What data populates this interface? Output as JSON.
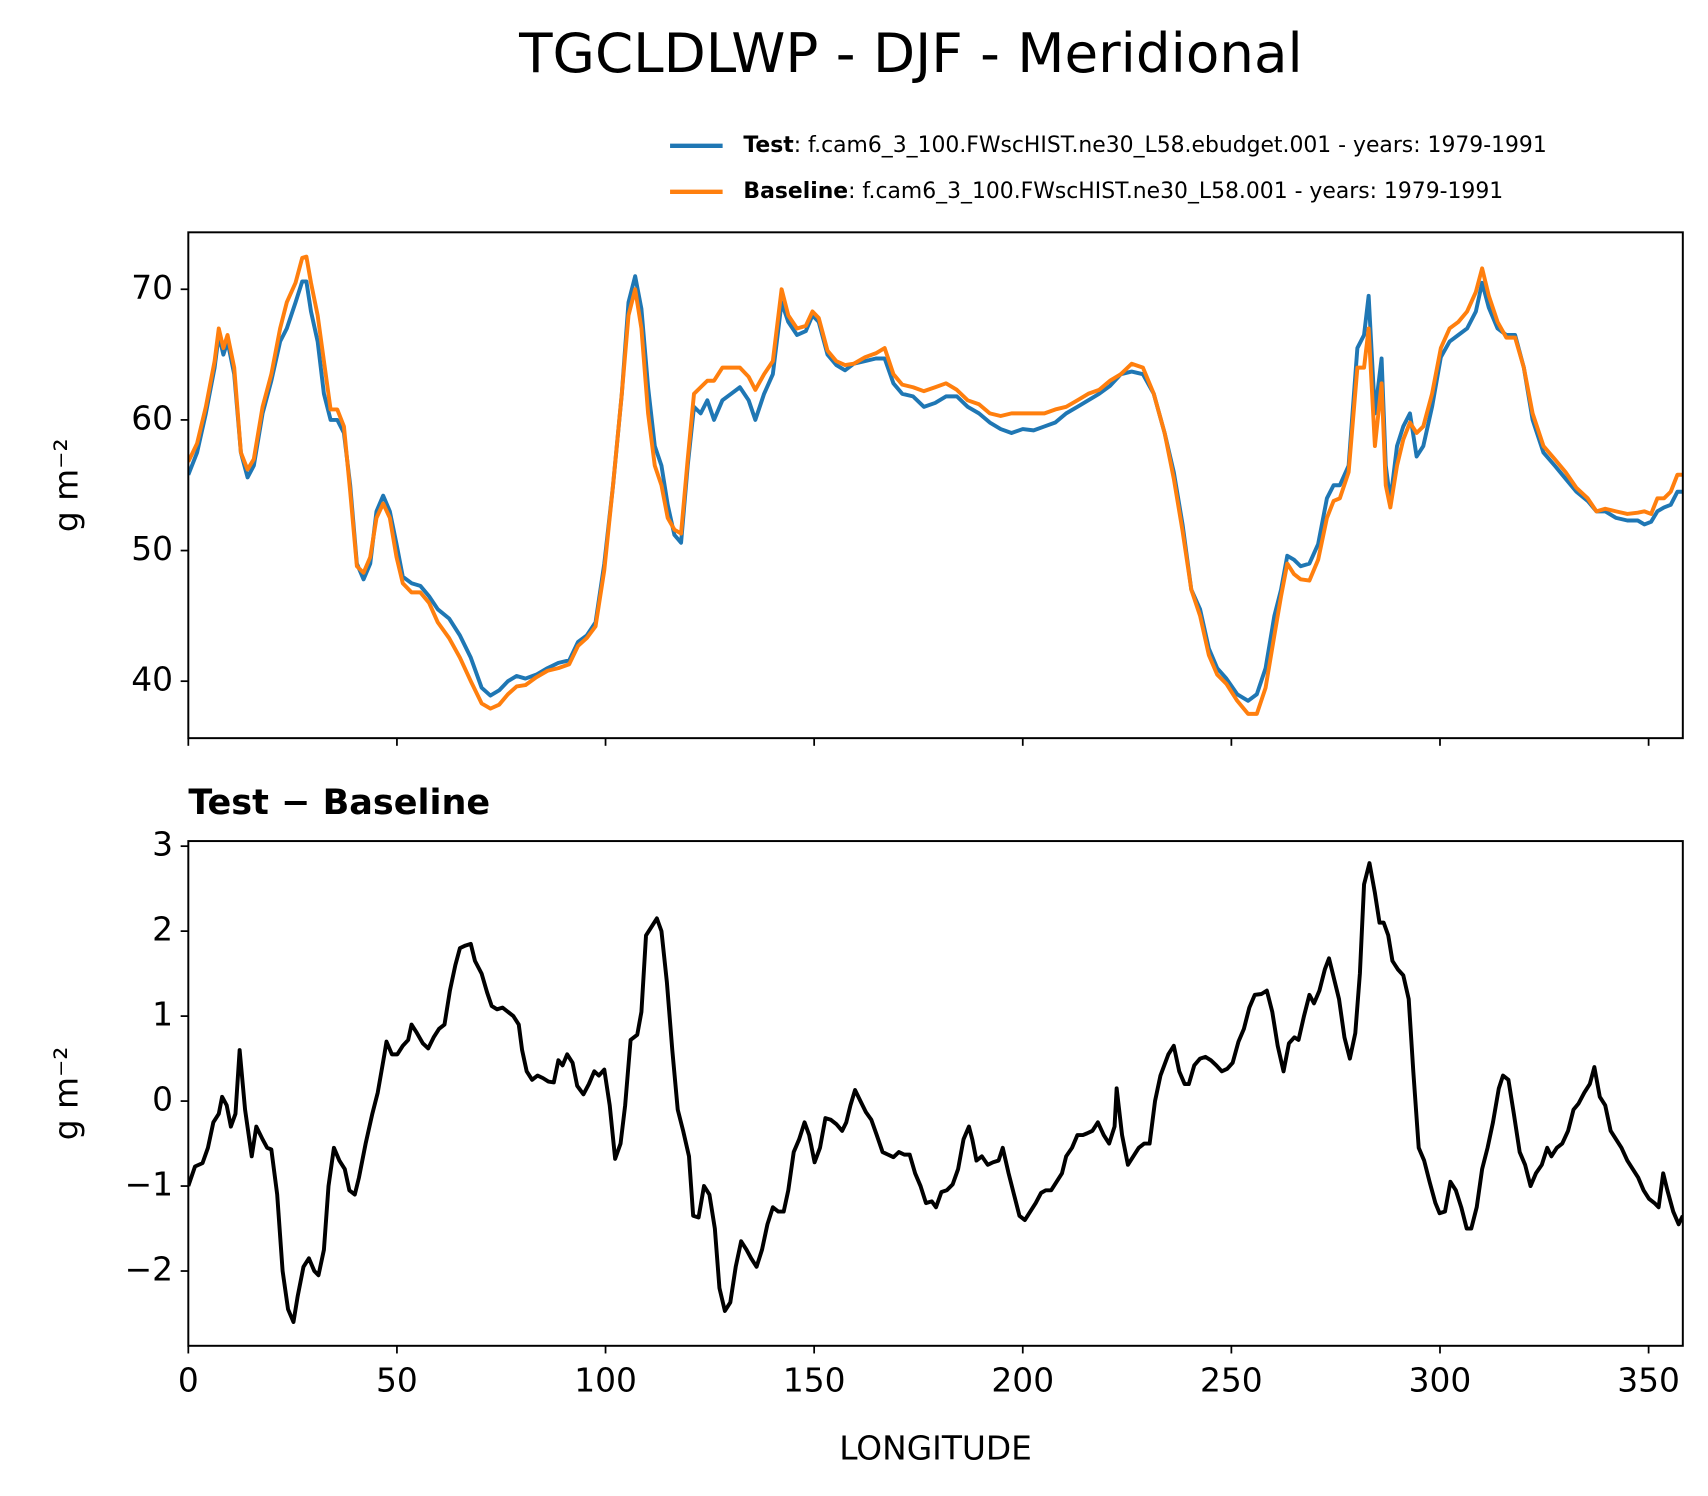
{
  "chart_data": [
    {
      "type": "line",
      "title": "TGCLDLWP - DJF - Meridional",
      "ylabel": "g m⁻²",
      "legend": "upper right",
      "xlim": [
        0,
        358.2
      ],
      "xticks": [
        0,
        50,
        100,
        150,
        200,
        250,
        300,
        350
      ],
      "ylim": [
        35.64,
        74.36
      ],
      "yticks": [
        40,
        50,
        60,
        70
      ],
      "x": [
        0,
        2.1,
        4.2,
        6.3,
        7.3,
        8.4,
        9.4,
        11,
        12.6,
        14.2,
        15.7,
        17.8,
        19.9,
        22,
        23.6,
        25.7,
        27.3,
        28.3,
        29.4,
        31,
        32.5,
        34.1,
        35.7,
        37.3,
        38.8,
        40.4,
        42,
        43.6,
        45.1,
        46.7,
        48.3,
        49.9,
        51.4,
        53.5,
        55.6,
        57.7,
        59.8,
        62.5,
        65.1,
        67.7,
        70.3,
        72.4,
        74.5,
        76.6,
        78.7,
        80.8,
        83.4,
        86.1,
        88.7,
        91.3,
        93.4,
        95.5,
        97.6,
        99.7,
        101.8,
        103.9,
        105.5,
        107.1,
        108.6,
        110.2,
        111.8,
        113.4,
        114.9,
        116.5,
        118.1,
        119.7,
        121.2,
        122.8,
        124.4,
        126,
        128,
        130.1,
        132.2,
        134.3,
        135.9,
        138,
        140.1,
        142.2,
        143.8,
        145.9,
        148,
        149.6,
        151.1,
        153.2,
        155.3,
        157.4,
        159.5,
        162.2,
        164.8,
        166.9,
        169,
        171.1,
        173.7,
        176.3,
        179,
        181.6,
        184.2,
        186.8,
        189.5,
        192.1,
        194.7,
        197.3,
        200,
        202.6,
        205.2,
        207.8,
        210.4,
        213.1,
        215.7,
        218.3,
        220.9,
        223.5,
        226.1,
        228.8,
        231.4,
        234,
        236.2,
        238.3,
        240.4,
        242.5,
        244.6,
        246.6,
        248.8,
        251.4,
        254,
        256.1,
        258.2,
        260.3,
        261.9,
        263.4,
        265,
        266.6,
        268.7,
        270.8,
        272.9,
        274.5,
        276,
        278.1,
        280.2,
        281.8,
        282.9,
        284.4,
        286,
        287,
        288.1,
        289.7,
        291.2,
        292.8,
        294.4,
        296,
        298.1,
        300.2,
        302.3,
        304.4,
        306.5,
        308.6,
        310.1,
        311.7,
        313.8,
        315.9,
        318,
        320.1,
        322.2,
        324.8,
        327.5,
        330.1,
        332.7,
        335.4,
        337.5,
        339.6,
        342.2,
        344.9,
        347.4,
        349,
        350.6,
        352.1,
        353.7,
        355.3,
        356.9,
        358.2
      ],
      "series": [
        {
          "name": "Test",
          "label": ": f.cam6_3_100.FWscHIST.ne30_L58.ebudget.001 - years: 1979-1991",
          "color": "#1f77b4",
          "values": [
            55.8,
            57.5,
            60.5,
            64,
            66.5,
            65,
            66,
            63.5,
            57.5,
            55.6,
            56.5,
            60.5,
            63,
            66,
            67,
            69,
            70.6,
            70.6,
            68.3,
            66,
            62,
            60,
            60,
            59,
            55,
            49,
            47.8,
            49,
            53,
            54.2,
            53,
            50.5,
            48,
            47.5,
            47.3,
            46.5,
            45.5,
            44.8,
            43.5,
            41.8,
            39.5,
            38.9,
            39.3,
            40,
            40.4,
            40.2,
            40.5,
            41,
            41.4,
            41.6,
            43,
            43.5,
            44.5,
            49,
            55,
            62,
            69,
            71,
            68.5,
            62.5,
            58,
            56.5,
            53.5,
            51.2,
            50.6,
            56.5,
            61,
            60.5,
            61.5,
            60,
            61.5,
            62,
            62.5,
            61.5,
            60,
            62,
            63.5,
            69,
            67.5,
            66.5,
            66.8,
            68,
            67.5,
            65,
            64.2,
            63.8,
            64.3,
            64.5,
            64.7,
            64.7,
            62.8,
            62,
            61.8,
            61,
            61.3,
            61.8,
            61.8,
            61,
            60.5,
            59.8,
            59.3,
            59,
            59.3,
            59.2,
            59.5,
            59.8,
            60.5,
            61,
            61.5,
            62,
            62.6,
            63.5,
            63.7,
            63.5,
            62,
            59,
            56,
            52,
            47,
            45.5,
            42.5,
            41,
            40.2,
            39,
            38.5,
            39,
            41,
            45,
            47,
            49.6,
            49.3,
            48.8,
            49,
            50.5,
            54,
            55,
            55,
            56.5,
            65.5,
            66.5,
            69.5,
            60.5,
            64.7,
            56.5,
            53.8,
            58,
            59.5,
            60.5,
            57.2,
            58,
            61,
            64.8,
            66,
            66.5,
            67,
            68.3,
            70.5,
            68.6,
            67,
            66.5,
            66.5,
            64,
            60,
            57.5,
            56.5,
            55.5,
            54.5,
            53.8,
            53,
            53,
            52.5,
            52.3,
            52.3,
            52,
            52.2,
            53,
            53.3,
            53.5,
            54.5,
            54.5
          ]
        },
        {
          "name": "Baseline",
          "label": ": f.cam6_3_100.FWscHIST.ne30_L58.001 - years: 1979-1991",
          "color": "#ff7f0e",
          "values": [
            56.8,
            58.2,
            61,
            64.5,
            67,
            65.5,
            66.5,
            64,
            57.5,
            56.2,
            57,
            61,
            63.5,
            67,
            69,
            70.5,
            72.4,
            72.5,
            70.5,
            68,
            64.5,
            60.8,
            60.8,
            59.5,
            54.5,
            48.8,
            48.3,
            49.5,
            52.5,
            53.6,
            52.5,
            49.5,
            47.5,
            46.8,
            46.8,
            46,
            44.5,
            43.3,
            41.8,
            40,
            38.3,
            37.9,
            38.2,
            39,
            39.6,
            39.7,
            40.3,
            40.8,
            41,
            41.3,
            42.7,
            43.3,
            44.2,
            48.5,
            55,
            62,
            68,
            70,
            67,
            60.5,
            56.5,
            55,
            52.5,
            51.6,
            51.3,
            57,
            62,
            62.5,
            63,
            63,
            64,
            64,
            64,
            63.3,
            62.3,
            63.5,
            64.5,
            70,
            68,
            67,
            67.2,
            68.3,
            67.8,
            65.3,
            64.5,
            64.2,
            64.3,
            64.8,
            65.1,
            65.5,
            63.5,
            62.7,
            62.5,
            62.2,
            62.5,
            62.8,
            62.3,
            61.5,
            61.2,
            60.5,
            60.3,
            60.5,
            60.5,
            60.5,
            60.5,
            60.8,
            61,
            61.5,
            62,
            62.3,
            63,
            63.5,
            64.3,
            64,
            62,
            59,
            55.5,
            51.5,
            47,
            45,
            42,
            40.5,
            39.8,
            38.5,
            37.5,
            37.5,
            39.5,
            43.5,
            46.5,
            49,
            48.2,
            47.8,
            47.7,
            49.3,
            52.5,
            53.8,
            54,
            56,
            64,
            64,
            67,
            58,
            62.8,
            55,
            53.3,
            56.5,
            58.5,
            59.8,
            59,
            59.5,
            62,
            65.5,
            67,
            67.5,
            68.3,
            69.8,
            71.6,
            69.5,
            67.5,
            66.3,
            66.3,
            64,
            60.5,
            58,
            57,
            56,
            54.8,
            54,
            53,
            53.2,
            53,
            52.8,
            52.9,
            53,
            52.8,
            54,
            54,
            54.5,
            55.8,
            55.8
          ]
        }
      ]
    },
    {
      "type": "line",
      "title": "Test − Baseline",
      "ylabel": "g m⁻²",
      "xlabel": "LONGITUDE",
      "xlim": [
        0,
        358.2
      ],
      "xticks": [
        0,
        50,
        100,
        150,
        200,
        250,
        300,
        350
      ],
      "ylim": [
        -2.88,
        3.06
      ],
      "yticks": [
        {
          "value": -2,
          "label": "−2"
        },
        {
          "value": -1,
          "label": "−1"
        },
        0,
        1,
        2,
        3
      ],
      "x": [
        0,
        1.6,
        3.4,
        4.7,
        6,
        7.3,
        8.1,
        9.2,
        10.2,
        11.3,
        12.3,
        13.6,
        15.2,
        16.3,
        17.8,
        18.9,
        19.9,
        21.3,
        22.6,
        23.9,
        25.2,
        26.2,
        27.6,
        28.9,
        30.2,
        31.2,
        32.5,
        33.6,
        34.9,
        36.2,
        37.5,
        38.6,
        39.9,
        40.9,
        42.5,
        44.1,
        45.4,
        47,
        47.5,
        48.8,
        50.1,
        51.4,
        52.7,
        53.5,
        54.8,
        56.2,
        57.5,
        58.8,
        60.1,
        61.4,
        62.7,
        64,
        65.1,
        66.4,
        67.7,
        68.7,
        70.3,
        71.6,
        72.7,
        74,
        75.3,
        76.6,
        77.9,
        79.2,
        80,
        81.1,
        82.4,
        83.7,
        85,
        86.3,
        87.6,
        88.7,
        89.7,
        90.8,
        92.1,
        93.2,
        94.7,
        96,
        97.3,
        98.4,
        99.7,
        101,
        102.3,
        103.6,
        104.7,
        106,
        107.6,
        108.6,
        109.7,
        111,
        112.3,
        113.4,
        114.7,
        116,
        117.3,
        118.6,
        120,
        121,
        122.3,
        123.6,
        124.9,
        126.2,
        127.3,
        128.6,
        129.9,
        131.2,
        132.5,
        133.8,
        134.9,
        136.2,
        137.5,
        138.8,
        140.1,
        141.4,
        142.7,
        143.8,
        145.1,
        146.4,
        147.7,
        148.8,
        150.1,
        151.4,
        152.7,
        154,
        155.3,
        156.7,
        157.7,
        158.7,
        159.8,
        161.1,
        162.4,
        163.7,
        165,
        166.4,
        167.7,
        169,
        170.3,
        171.6,
        172.9,
        174.2,
        175.5,
        176.8,
        178.2,
        179.2,
        180.5,
        181.8,
        183.2,
        184.5,
        185.8,
        187.1,
        187.9,
        188.9,
        190.2,
        191.6,
        192.9,
        194.2,
        195.2,
        196.6,
        197.9,
        199.2,
        200.5,
        201.8,
        203.1,
        204.4,
        205.5,
        206.8,
        208.1,
        209.4,
        210.4,
        211.8,
        213.1,
        214.4,
        215.4,
        216.7,
        218,
        219.4,
        220.7,
        222,
        222.5,
        223.8,
        225.2,
        226.5,
        227.8,
        229.1,
        230.4,
        231.7,
        233,
        234.9,
        236.2,
        237.5,
        238.8,
        239.8,
        241.1,
        242.5,
        243.8,
        245.1,
        246.4,
        247.7,
        249,
        250.3,
        251.7,
        253,
        254.3,
        255.6,
        257.2,
        258.5,
        259.8,
        261.1,
        262.5,
        263.8,
        265.1,
        266.1,
        267.4,
        268.7,
        269.8,
        271.1,
        272.4,
        273.4,
        274.8,
        275.8,
        277.1,
        278.4,
        279.7,
        280.8,
        281.8,
        283.1,
        284.4,
        285.5,
        286.5,
        287.6,
        288.6,
        289.9,
        291.2,
        292.5,
        293.6,
        294.9,
        296.2,
        297.5,
        298.9,
        299.9,
        301.2,
        302.5,
        303.8,
        305.1,
        306.4,
        307.5,
        308.8,
        310.1,
        311.4,
        312.7,
        314.1,
        315.1,
        316.4,
        317.7,
        319.1,
        320.4,
        321.7,
        323,
        324.4,
        325.7,
        326.7,
        328,
        329.3,
        330.7,
        332,
        333.2,
        334.6,
        335.9,
        337,
        338.3,
        339.6,
        340.9,
        342.2,
        343.5,
        344.9,
        346.2,
        347.5,
        348.8,
        350.1,
        351.4,
        352.4,
        353.5,
        354.5,
        355.9,
        357.2,
        358.2
      ],
      "series": [
        {
          "color": "#000000",
          "values": [
            -1,
            -0.77,
            -0.73,
            -0.55,
            -0.25,
            -0.15,
            0.05,
            -0.05,
            -0.3,
            -0.15,
            0.6,
            -0.1,
            -0.65,
            -0.3,
            -0.45,
            -0.55,
            -0.57,
            -1.1,
            -2,
            -2.45,
            -2.6,
            -2.3,
            -1.95,
            -1.85,
            -2,
            -2.05,
            -1.75,
            -1,
            -0.55,
            -0.7,
            -0.8,
            -1.05,
            -1.1,
            -0.9,
            -0.5,
            -0.15,
            0.1,
            0.55,
            0.7,
            0.55,
            0.55,
            0.65,
            0.72,
            0.9,
            0.8,
            0.68,
            0.62,
            0.75,
            0.85,
            0.9,
            1.3,
            1.6,
            1.8,
            1.83,
            1.85,
            1.65,
            1.5,
            1.28,
            1.12,
            1.08,
            1.1,
            1.05,
            1,
            0.9,
            0.6,
            0.35,
            0.25,
            0.3,
            0.27,
            0.23,
            0.22,
            0.48,
            0.42,
            0.55,
            0.45,
            0.18,
            0.08,
            0.2,
            0.35,
            0.3,
            0.37,
            -0.05,
            -0.68,
            -0.5,
            -0.05,
            0.72,
            0.78,
            1.05,
            1.95,
            2.05,
            2.15,
            2,
            1.4,
            0.6,
            -0.1,
            -0.35,
            -0.65,
            -1.35,
            -1.37,
            -1,
            -1.1,
            -1.5,
            -2.2,
            -2.47,
            -2.37,
            -1.95,
            -1.65,
            -1.75,
            -1.85,
            -1.95,
            -1.75,
            -1.45,
            -1.25,
            -1.3,
            -1.3,
            -1.05,
            -0.6,
            -0.45,
            -0.25,
            -0.4,
            -0.72,
            -0.55,
            -0.2,
            -0.22,
            -0.27,
            -0.35,
            -0.25,
            -0.05,
            0.13,
            0,
            -0.13,
            -0.22,
            -0.4,
            -0.6,
            -0.63,
            -0.66,
            -0.6,
            -0.63,
            -0.63,
            -0.85,
            -1,
            -1.2,
            -1.18,
            -1.25,
            -1.07,
            -1.05,
            -0.98,
            -0.8,
            -0.45,
            -0.3,
            -0.45,
            -0.7,
            -0.65,
            -0.75,
            -0.72,
            -0.7,
            -0.55,
            -0.85,
            -1.1,
            -1.35,
            -1.4,
            -1.3,
            -1.2,
            -1.08,
            -1.05,
            -1.05,
            -0.95,
            -0.85,
            -0.65,
            -0.55,
            -0.4,
            -0.4,
            -0.38,
            -0.35,
            -0.25,
            -0.4,
            -0.5,
            -0.3,
            0.15,
            -0.4,
            -0.75,
            -0.65,
            -0.55,
            -0.5,
            -0.5,
            0,
            0.3,
            0.55,
            0.65,
            0.35,
            0.2,
            0.2,
            0.42,
            0.5,
            0.52,
            0.48,
            0.42,
            0.35,
            0.38,
            0.45,
            0.7,
            0.85,
            1.1,
            1.25,
            1.26,
            1.3,
            1.05,
            0.65,
            0.35,
            0.68,
            0.75,
            0.72,
            1,
            1.25,
            1.15,
            1.3,
            1.55,
            1.68,
            1.4,
            1.2,
            0.75,
            0.5,
            0.8,
            1.5,
            2.55,
            2.8,
            2.45,
            2.1,
            2.1,
            1.95,
            1.65,
            1.55,
            1.48,
            1.2,
            0.35,
            -0.55,
            -0.7,
            -0.95,
            -1.2,
            -1.32,
            -1.3,
            -0.95,
            -1.05,
            -1.25,
            -1.5,
            -1.5,
            -1.25,
            -0.8,
            -0.55,
            -0.25,
            0.15,
            0.3,
            0.25,
            -0.15,
            -0.6,
            -0.75,
            -1,
            -0.85,
            -0.75,
            -0.55,
            -0.65,
            -0.55,
            -0.5,
            -0.35,
            -0.1,
            -0.03,
            0.1,
            0.2,
            0.4,
            0.05,
            -0.05,
            -0.35,
            -0.45,
            -0.55,
            -0.7,
            -0.8,
            -0.9,
            -1.05,
            -1.15,
            -1.2,
            -1.25,
            -0.85,
            -1.05,
            -1.3,
            -1.45,
            -1.35
          ]
        }
      ]
    }
  ]
}
